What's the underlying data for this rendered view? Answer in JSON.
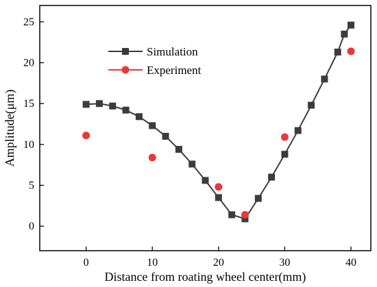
{
  "chart_data": {
    "type": "line",
    "xlabel": "Distance from roating wheel center(mm)",
    "ylabel": "Amplitude(μm)",
    "xlim": [
      -7,
      43
    ],
    "ylim": [
      -3,
      27
    ],
    "x_ticks": [
      0,
      10,
      20,
      30,
      40
    ],
    "y_ticks": [
      0,
      5,
      10,
      15,
      20,
      25
    ],
    "grid": false,
    "legend_position": "top-center",
    "series": [
      {
        "name": "Simulation",
        "style": "line-square",
        "color": "#3c3c3c",
        "x": [
          0,
          2,
          4,
          6,
          8,
          10,
          12,
          14,
          16,
          18,
          20,
          22,
          24,
          26,
          28,
          30,
          32,
          34,
          36,
          38,
          39,
          40
        ],
        "y": [
          14.9,
          15.0,
          14.7,
          14.2,
          13.4,
          12.3,
          11.0,
          9.4,
          7.6,
          5.6,
          3.5,
          1.4,
          0.9,
          3.4,
          6.0,
          8.8,
          11.7,
          14.8,
          18.0,
          21.3,
          23.5,
          24.6
        ]
      },
      {
        "name": "Experiment",
        "style": "scatter-circle",
        "color": "#e8393a",
        "x": [
          0,
          10,
          20,
          24,
          30,
          40
        ],
        "y": [
          11.1,
          8.4,
          4.8,
          1.4,
          10.9,
          21.4
        ]
      }
    ]
  }
}
